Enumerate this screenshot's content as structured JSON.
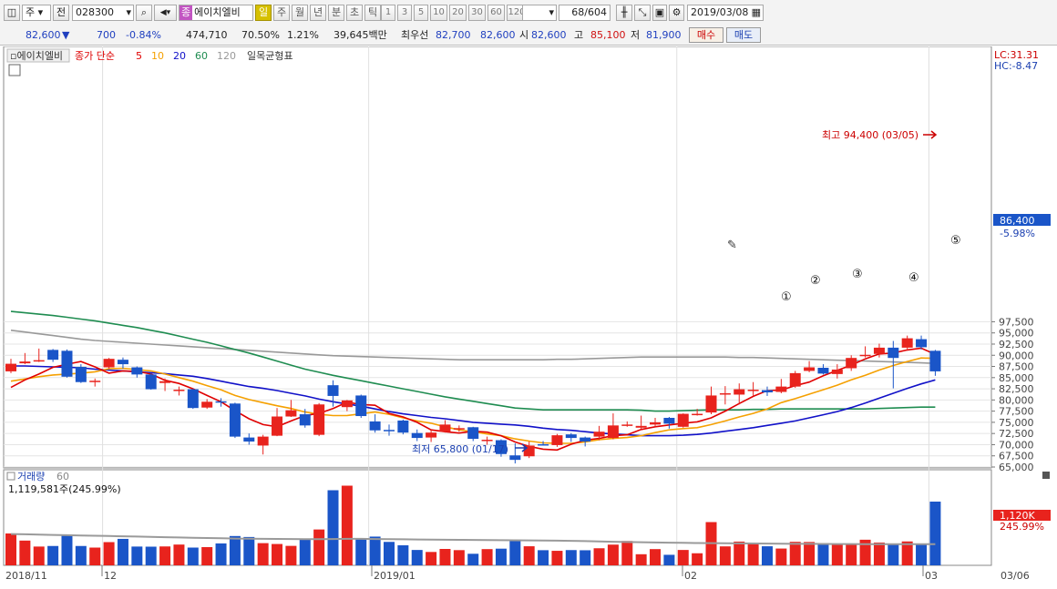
{
  "toolbar": {
    "period_label": "주",
    "prev_label": "전",
    "code": "028300",
    "badge": "종",
    "stock_name": "에이치엘비",
    "timeframes": [
      "일",
      "주",
      "월",
      "년",
      "분",
      "초",
      "틱"
    ],
    "active_timeframe": "일",
    "intervals": [
      "1",
      "3",
      "5",
      "10",
      "20",
      "30",
      "60",
      "120"
    ],
    "count": "68/604",
    "date": "2019/03/08"
  },
  "quote": {
    "price": "82,600",
    "change": "700",
    "change_pct": "-0.84%",
    "volume": "474,710",
    "vol_ratio": "70.50%",
    "turnover": "1.21%",
    "amount": "39,645백만",
    "best_bid_label": "최우선",
    "best_ask": "82,700",
    "best_bid": "82,600",
    "open_label": "시",
    "open": "82,600",
    "high_label": "고",
    "high": "85,100",
    "low_label": "저",
    "low": "81,900",
    "buy_label": "매수",
    "sell_label": "매도"
  },
  "legend": {
    "stock": "에이치엘비",
    "ma_label": "종가 단순",
    "ma_periods": [
      "5",
      "10",
      "20",
      "60",
      "120"
    ],
    "ichimoku": "일목균형표",
    "lc": "LC:31.31",
    "hc": "HC:-8.47",
    "volume_title": "거래량",
    "volume_period": "60",
    "volume_info": "1,119,581주(245.99%)"
  },
  "annotations": {
    "high": "최고 94,400 (03/05)",
    "low": "최저 65,800 (01/17)",
    "current_price": "86,400",
    "current_change": "-5.98%",
    "vol_current": "1,120K",
    "vol_pct": "245.99%",
    "markers": [
      "①",
      "②",
      "③",
      "④",
      "⑤"
    ]
  },
  "colors": {
    "up": "#e8231d",
    "down": "#1a55c8",
    "ma5": "#e00000",
    "ma10": "#f5a000",
    "ma20": "#1010c8",
    "ma60": "#1e8c50",
    "ma120": "#999999"
  },
  "chart_data": {
    "type": "candlestick",
    "price_axis": [
      "97,500",
      "95,000",
      "92,500",
      "90,000",
      "87,500",
      "85,000",
      "82,500",
      "80,000",
      "77,500",
      "75,000",
      "72,500",
      "70,000",
      "67,500",
      "65,000"
    ],
    "date_axis": [
      "2018/11",
      "12",
      "2019/01",
      "02",
      "03",
      "03/06"
    ],
    "candles": [
      {
        "o": 86400,
        "c": 88100,
        "h": 89200,
        "l": 86000
      },
      {
        "o": 88200,
        "c": 88600,
        "h": 90500,
        "l": 88000
      },
      {
        "o": 88800,
        "c": 88900,
        "h": 91500,
        "l": 88500
      },
      {
        "o": 91200,
        "c": 89000,
        "h": 91400,
        "l": 88500
      },
      {
        "o": 91000,
        "c": 85200,
        "h": 91300,
        "l": 85000
      },
      {
        "o": 87400,
        "c": 84000,
        "h": 88000,
        "l": 83800
      },
      {
        "o": 84000,
        "c": 84300,
        "h": 84800,
        "l": 83000
      },
      {
        "o": 87300,
        "c": 89200,
        "h": 89400,
        "l": 87000
      },
      {
        "o": 89000,
        "c": 88000,
        "h": 89500,
        "l": 87000
      },
      {
        "o": 87300,
        "c": 85700,
        "h": 87500,
        "l": 85000
      },
      {
        "o": 85700,
        "c": 82400,
        "h": 86000,
        "l": 82300
      },
      {
        "o": 83800,
        "c": 84200,
        "h": 84800,
        "l": 82000
      },
      {
        "o": 82200,
        "c": 82300,
        "h": 83000,
        "l": 81000
      },
      {
        "o": 82400,
        "c": 78200,
        "h": 82500,
        "l": 78000
      },
      {
        "o": 78300,
        "c": 79600,
        "h": 80200,
        "l": 78000
      },
      {
        "o": 79700,
        "c": 79600,
        "h": 80400,
        "l": 78500
      },
      {
        "o": 79200,
        "c": 71800,
        "h": 79400,
        "l": 71500
      },
      {
        "o": 71600,
        "c": 70700,
        "h": 72500,
        "l": 70000
      },
      {
        "o": 69800,
        "c": 71800,
        "h": 72200,
        "l": 67800
      },
      {
        "o": 72000,
        "c": 76300,
        "h": 78200,
        "l": 71900
      },
      {
        "o": 76300,
        "c": 77700,
        "h": 80000,
        "l": 76200
      },
      {
        "o": 76800,
        "c": 74300,
        "h": 78000,
        "l": 73800
      },
      {
        "o": 72200,
        "c": 79000,
        "h": 79300,
        "l": 71900
      },
      {
        "o": 83300,
        "c": 80900,
        "h": 84400,
        "l": 78500
      },
      {
        "o": 78400,
        "c": 79900,
        "h": 80000,
        "l": 77500
      },
      {
        "o": 81000,
        "c": 76400,
        "h": 81200,
        "l": 76000
      },
      {
        "o": 75200,
        "c": 73200,
        "h": 76800,
        "l": 72700
      },
      {
        "o": 73300,
        "c": 73000,
        "h": 74500,
        "l": 72000
      },
      {
        "o": 75400,
        "c": 72700,
        "h": 75600,
        "l": 72300
      },
      {
        "o": 72600,
        "c": 71500,
        "h": 73400,
        "l": 70800
      },
      {
        "o": 71600,
        "c": 72700,
        "h": 73500,
        "l": 70600
      },
      {
        "o": 72900,
        "c": 74500,
        "h": 75500,
        "l": 72700
      },
      {
        "o": 73700,
        "c": 73700,
        "h": 74300,
        "l": 72900
      },
      {
        "o": 73900,
        "c": 71300,
        "h": 74000,
        "l": 70800
      },
      {
        "o": 71000,
        "c": 71100,
        "h": 71800,
        "l": 70000
      },
      {
        "o": 71000,
        "c": 67900,
        "h": 71200,
        "l": 67300
      },
      {
        "o": 67600,
        "c": 66600,
        "h": 70300,
        "l": 65800
      },
      {
        "o": 67400,
        "c": 69800,
        "h": 70700,
        "l": 67000
      },
      {
        "o": 70100,
        "c": 70000,
        "h": 70800,
        "l": 69800
      },
      {
        "o": 69900,
        "c": 72100,
        "h": 72400,
        "l": 69500
      },
      {
        "o": 72300,
        "c": 71500,
        "h": 72600,
        "l": 70600
      },
      {
        "o": 71600,
        "c": 70700,
        "h": 71800,
        "l": 69600
      },
      {
        "o": 71800,
        "c": 72900,
        "h": 74200,
        "l": 71000
      },
      {
        "o": 71500,
        "c": 74300,
        "h": 77000,
        "l": 71200
      },
      {
        "o": 74500,
        "c": 74500,
        "h": 75200,
        "l": 74000
      },
      {
        "o": 73800,
        "c": 74200,
        "h": 76500,
        "l": 73500
      },
      {
        "o": 74500,
        "c": 75000,
        "h": 76000,
        "l": 74000
      },
      {
        "o": 76000,
        "c": 74700,
        "h": 76200,
        "l": 73600
      },
      {
        "o": 74000,
        "c": 76900,
        "h": 77000,
        "l": 73800
      },
      {
        "o": 76800,
        "c": 76900,
        "h": 78000,
        "l": 76500
      },
      {
        "o": 77200,
        "c": 81000,
        "h": 83000,
        "l": 76800
      },
      {
        "o": 81300,
        "c": 81500,
        "h": 83100,
        "l": 79000
      },
      {
        "o": 81200,
        "c": 82400,
        "h": 83700,
        "l": 79000
      },
      {
        "o": 82000,
        "c": 82300,
        "h": 84000,
        "l": 81000
      },
      {
        "o": 82200,
        "c": 81700,
        "h": 83000,
        "l": 80900
      },
      {
        "o": 81800,
        "c": 83000,
        "h": 84700,
        "l": 81500
      },
      {
        "o": 83000,
        "c": 86000,
        "h": 86500,
        "l": 82700
      },
      {
        "o": 86500,
        "c": 87300,
        "h": 88700,
        "l": 86200
      },
      {
        "o": 87200,
        "c": 85900,
        "h": 88000,
        "l": 85700
      },
      {
        "o": 85800,
        "c": 86800,
        "h": 88000,
        "l": 84800
      },
      {
        "o": 87100,
        "c": 89400,
        "h": 90000,
        "l": 86500
      },
      {
        "o": 90000,
        "c": 90100,
        "h": 92000,
        "l": 89500
      },
      {
        "o": 90300,
        "c": 91700,
        "h": 92600,
        "l": 89500
      },
      {
        "o": 91700,
        "c": 89400,
        "h": 93200,
        "l": 82600
      },
      {
        "o": 91700,
        "c": 93800,
        "h": 94400,
        "l": 91000
      },
      {
        "o": 93600,
        "c": 91800,
        "h": 94400,
        "l": 91300
      },
      {
        "o": 91000,
        "c": 86400,
        "h": 91200,
        "l": 85400
      }
    ],
    "volume_units": "K shares",
    "volume": [
      560,
      435,
      330,
      340,
      525,
      340,
      312,
      408,
      465,
      330,
      328,
      332,
      365,
      312,
      320,
      385,
      515,
      498,
      390,
      375,
      342,
      470,
      630,
      1320,
      1400,
      470,
      505,
      412,
      352,
      270,
      235,
      288,
      267,
      203,
      285,
      293,
      450,
      335,
      266,
      255,
      268,
      265,
      300,
      364,
      428,
      195,
      285,
      185,
      270,
      212,
      760,
      333,
      417,
      382,
      335,
      295,
      413,
      410,
      390,
      380,
      380,
      450,
      400,
      380,
      420,
      360,
      1120
    ],
    "volume_ma": [
      550,
      545,
      540,
      535,
      530,
      525,
      520,
      515,
      510,
      505,
      500,
      495,
      490,
      485,
      480,
      475,
      470,
      468,
      466,
      464,
      462,
      460,
      460,
      462,
      465,
      465,
      463,
      460,
      458,
      455,
      452,
      450,
      448,
      446,
      444,
      442,
      440,
      438,
      436,
      434,
      430,
      425,
      420,
      415,
      410,
      406,
      402,
      398,
      395,
      392,
      390,
      388,
      386,
      384,
      382,
      380,
      378,
      377,
      376,
      375,
      374,
      373,
      372,
      372,
      372,
      372,
      372
    ],
    "ma5": [
      82800,
      84500,
      85800,
      87300,
      88000,
      88600,
      87400,
      86000,
      86500,
      86400,
      85800,
      84400,
      83700,
      82500,
      81000,
      79600,
      77600,
      75800,
      74500,
      74000,
      75300,
      76500,
      77000,
      78100,
      79500,
      79000,
      78800,
      77000,
      76200,
      75000,
      73300,
      72900,
      72600,
      73000,
      72800,
      72000,
      70600,
      69600,
      69000,
      68800,
      70100,
      71000,
      71400,
      72000,
      72200,
      73400,
      74000,
      74400,
      74800,
      75100,
      76000,
      77500,
      79200,
      80800,
      82100,
      82200,
      83200,
      84000,
      85400,
      86600,
      87800,
      89200,
      90300,
      90500,
      91200,
      91600,
      90200
    ],
    "ma10": [
      84200,
      84700,
      85200,
      85600,
      85800,
      86000,
      86300,
      87000,
      87100,
      86800,
      86500,
      85800,
      85000,
      84200,
      83200,
      82300,
      81000,
      80100,
      79400,
      78700,
      78100,
      77300,
      76800,
      76500,
      76500,
      76900,
      77300,
      76800,
      76000,
      75300,
      74800,
      74000,
      73300,
      72900,
      72400,
      72000,
      71300,
      70800,
      70400,
      70300,
      70300,
      70600,
      71100,
      71400,
      71600,
      72000,
      72700,
      73300,
      73600,
      73800,
      74500,
      75300,
      76200,
      77000,
      78000,
      79400,
      80300,
      81300,
      82300,
      83300,
      84500,
      85500,
      86700,
      87700,
      88600,
      89400,
      89300
    ],
    "ma20": [
      87600,
      87600,
      87500,
      87400,
      87300,
      87200,
      86900,
      86700,
      86500,
      86300,
      86100,
      85900,
      85600,
      85300,
      84800,
      84200,
      83600,
      83000,
      82600,
      82100,
      81500,
      80900,
      80200,
      79600,
      79100,
      78600,
      78000,
      77400,
      76900,
      76500,
      76100,
      75800,
      75400,
      75000,
      74800,
      74600,
      74400,
      74100,
      73700,
      73400,
      73200,
      72900,
      72600,
      72400,
      72200,
      72000,
      72000,
      72000,
      72100,
      72300,
      72600,
      73000,
      73400,
      73800,
      74300,
      74800,
      75300,
      76000,
      76700,
      77400,
      78300,
      79300,
      80400,
      81500,
      82600,
      83600,
      84500
    ],
    "ma60": [
      99800,
      99500,
      99200,
      98900,
      98500,
      98100,
      97700,
      97200,
      96700,
      96200,
      95600,
      95000,
      94300,
      93600,
      92900,
      92100,
      91300,
      90500,
      89600,
      88700,
      87800,
      86900,
      86200,
      85500,
      84900,
      84300,
      83700,
      83100,
      82500,
      81900,
      81300,
      80700,
      80200,
      79700,
      79200,
      78700,
      78200,
      78000,
      77800,
      77800,
      77800,
      77800,
      77800,
      77800,
      77800,
      77700,
      77500,
      77500,
      77600,
      77700,
      77800,
      77800,
      77800,
      77900,
      77900,
      78000,
      78000,
      78000,
      78000,
      78000,
      78000,
      78000,
      78100,
      78200,
      78300,
      78400,
      78400
    ],
    "ma120": [
      95600,
      95200,
      94800,
      94400,
      94000,
      93600,
      93300,
      93100,
      92900,
      92700,
      92500,
      92300,
      92100,
      91900,
      91700,
      91500,
      91300,
      91100,
      90900,
      90700,
      90500,
      90300,
      90100,
      89900,
      89800,
      89700,
      89600,
      89500,
      89400,
      89300,
      89200,
      89100,
      89000,
      89000,
      89000,
      89000,
      89000,
      89000,
      89000,
      89100,
      89100,
      89200,
      89300,
      89400,
      89500,
      89600,
      89600,
      89600,
      89600,
      89600,
      89600,
      89600,
      89500,
      89500,
      89400,
      89300,
      89200,
      89100,
      89000,
      88900,
      88800,
      88700,
      88600,
      88500,
      88400,
      88300,
      88200
    ]
  }
}
